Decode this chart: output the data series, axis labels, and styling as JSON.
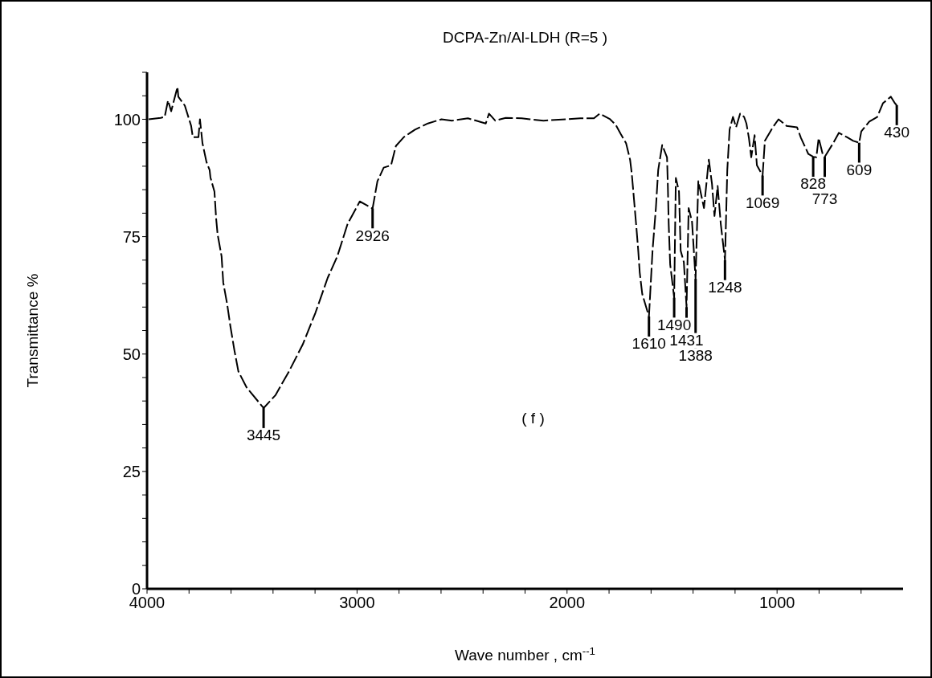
{
  "chart_data": {
    "type": "line",
    "title": "DCPA-Zn/Al-LDH (R=5 )",
    "xlabel": "Wave number , cm$^{--1}$",
    "ylabel": "Transmittance %",
    "xlim": [
      4000,
      400
    ],
    "ylim": [
      0,
      110
    ],
    "xticks": [
      4000,
      {
        "value": 3800,
        "label": null
      },
      {
        "value": 3600,
        "label": null
      },
      {
        "value": 3400,
        "label": null
      },
      {
        "value": 3200,
        "label": null
      },
      3000,
      {
        "value": 2800,
        "label": null
      },
      {
        "value": 2600,
        "label": null
      },
      {
        "value": 2400,
        "label": null
      },
      {
        "value": 2200,
        "label": null
      },
      2000,
      {
        "value": 1800,
        "label": null
      },
      {
        "value": 1600,
        "label": null
      },
      {
        "value": 1400,
        "label": null
      },
      {
        "value": 1200,
        "label": null
      },
      1000,
      {
        "value": 800,
        "label": null
      },
      {
        "value": 600,
        "label": null
      }
    ],
    "yticks": [
      0,
      {
        "value": 5,
        "label": null
      },
      {
        "value": 10,
        "label": null
      },
      {
        "value": 15,
        "label": null
      },
      {
        "value": 20,
        "label": null
      },
      25,
      {
        "value": 30,
        "label": null
      },
      {
        "value": 35,
        "label": null
      },
      {
        "value": 40,
        "label": null
      },
      {
        "value": 45,
        "label": null
      },
      50,
      {
        "value": 55,
        "label": null
      },
      {
        "value": 60,
        "label": null
      },
      {
        "value": 65,
        "label": null
      },
      {
        "value": 70,
        "label": null
      },
      75,
      {
        "value": 80,
        "label": null
      },
      {
        "value": 85,
        "label": null
      },
      {
        "value": 90,
        "label": null
      },
      {
        "value": 95,
        "label": null
      },
      100,
      {
        "value": 105,
        "label": null
      },
      {
        "value": 110,
        "label": null
      }
    ],
    "marker": "none",
    "line_style": "dashed",
    "series": [
      {
        "color": "#000000",
        "x": [
          3992,
          3935,
          3916,
          3900,
          3885,
          3855,
          3851,
          3820,
          3790,
          3782,
          3755,
          3748,
          3736,
          3717,
          3702,
          3698,
          3679,
          3671,
          3664,
          3645,
          3637,
          3618,
          3603,
          3584,
          3565,
          3526,
          3445,
          3389,
          3324,
          3259,
          3198,
          3140,
          3094,
          3045,
          2987,
          2926,
          2903,
          2873,
          2838,
          2815,
          2777,
          2724,
          2663,
          2598,
          2548,
          2472,
          2387,
          2372,
          2342,
          2292,
          2216,
          2177,
          2112,
          1937,
          1872,
          1845,
          1795,
          1768,
          1745,
          1719,
          1700,
          1692,
          1681,
          1669,
          1661,
          1654,
          1642,
          1610,
          1593,
          1577,
          1566,
          1547,
          1524,
          1520,
          1516,
          1509,
          1490,
          1482,
          1467,
          1459,
          1444,
          1431,
          1421,
          1405,
          1388,
          1375,
          1348,
          1325,
          1310,
          1298,
          1283,
          1268,
          1248,
          1237,
          1226,
          1210,
          1195,
          1176,
          1157,
          1146,
          1134,
          1123,
          1107,
          1096,
          1069,
          1058,
          1020,
          993,
          955,
          905,
          886,
          851,
          828,
          813,
          802,
          783,
          773,
          733,
          706,
          668,
          637,
          609,
          599,
          561,
          523,
          496,
          458,
          439,
          430
        ],
        "values": [
          100,
          100.3,
          100.5,
          104,
          101.7,
          106.9,
          104.8,
          102.9,
          98.6,
          96.2,
          96.2,
          100,
          94.9,
          90.9,
          89.2,
          87.6,
          84.6,
          78.9,
          75.5,
          70.8,
          65.2,
          60.5,
          55.9,
          50.8,
          46.3,
          42.9,
          38.5,
          41.2,
          46.3,
          52,
          58.8,
          66.2,
          70.8,
          77.7,
          82.5,
          81,
          86.8,
          89.7,
          90.2,
          94.3,
          96.2,
          97.8,
          99.1,
          100,
          99.7,
          100.2,
          99.1,
          101.2,
          99.7,
          100.3,
          100.2,
          100,
          99.7,
          100.2,
          100.2,
          101.2,
          100,
          98.8,
          96.9,
          94.9,
          91.4,
          88.5,
          82.8,
          76.5,
          72,
          67.4,
          62.8,
          58,
          72,
          81.1,
          89.2,
          94.5,
          91.9,
          85.8,
          77.7,
          69.1,
          62,
          87.5,
          84.6,
          72,
          69.6,
          60,
          81.1,
          78.2,
          66,
          86.8,
          81.1,
          91.4,
          86.3,
          79.4,
          85.8,
          77.7,
          70,
          89.2,
          97.8,
          100.5,
          98.3,
          101.2,
          100.5,
          99.1,
          96,
          91.9,
          96.6,
          90.2,
          88,
          95.4,
          98.3,
          100,
          98.6,
          98.3,
          96,
          92.6,
          92,
          91.9,
          96,
          92.6,
          92,
          94.9,
          97.1,
          96.2,
          95.4,
          95,
          97.4,
          99.5,
          100.5,
          103.4,
          104.8,
          103.4,
          103
        ]
      }
    ],
    "annotations": [
      {
        "text": "3445",
        "x": 3445,
        "y": 38.5
      },
      {
        "text": "2926",
        "x": 2926,
        "y": 81
      },
      {
        "text": "1610",
        "x": 1610,
        "y": 58
      },
      {
        "text": "1490",
        "x": 1490,
        "y": 62
      },
      {
        "text": "1431",
        "x": 1431,
        "y": 60
      },
      {
        "text": "1388",
        "x": 1388,
        "y": 66
      },
      {
        "text": "1248",
        "x": 1248,
        "y": 70
      },
      {
        "text": "1069",
        "x": 1069,
        "y": 88
      },
      {
        "text": "828",
        "x": 828,
        "y": 92
      },
      {
        "text": "773",
        "x": 773,
        "y": 92
      },
      {
        "text": "609",
        "x": 609,
        "y": 95
      },
      {
        "text": "430",
        "x": 430,
        "y": 103
      },
      "( f )"
    ]
  }
}
